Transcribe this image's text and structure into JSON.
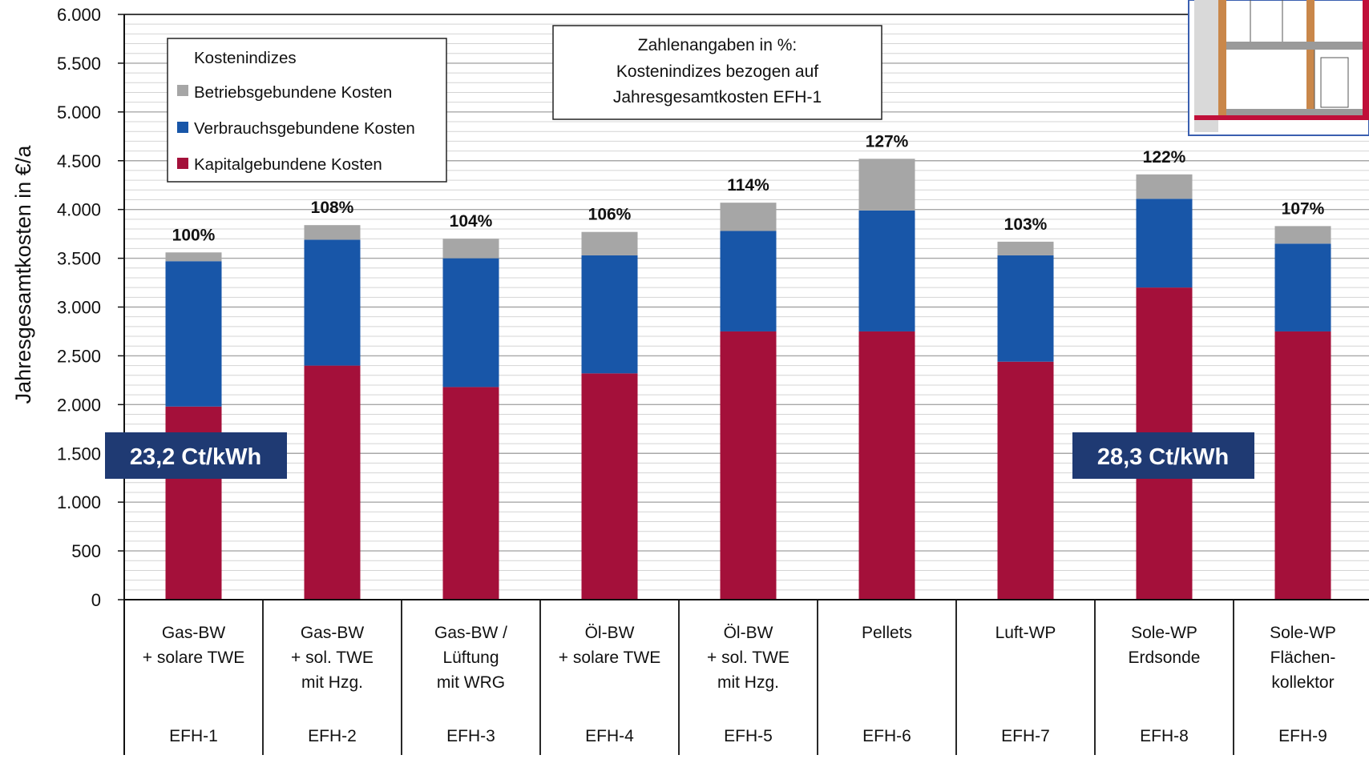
{
  "chart_data": {
    "type": "bar",
    "stacked": true,
    "ylabel": "Jahresgesamtkosten in €/a",
    "ylim": [
      0,
      6000
    ],
    "yticks": [
      0,
      500,
      1000,
      1500,
      2000,
      2500,
      3000,
      3500,
      4000,
      4500,
      5000,
      5500,
      6000
    ],
    "ytick_labels": [
      "0",
      "500",
      "1.000",
      "1.500",
      "2.000",
      "2.500",
      "3.000",
      "3.500",
      "4.000",
      "4.500",
      "5.000",
      "5.500",
      "6.000"
    ],
    "grid": true,
    "categories": [
      {
        "lines": [
          "Gas-BW",
          "+ solare TWE"
        ],
        "code": "EFH-1"
      },
      {
        "lines": [
          "Gas-BW",
          "+ sol. TWE",
          "mit Hzg."
        ],
        "code": "EFH-2"
      },
      {
        "lines": [
          "Gas-BW /",
          "Lüftung",
          "mit WRG"
        ],
        "code": "EFH-3"
      },
      {
        "lines": [
          "Öl-BW",
          "+ solare TWE"
        ],
        "code": "EFH-4"
      },
      {
        "lines": [
          "Öl-BW",
          "+ sol. TWE",
          "mit Hzg."
        ],
        "code": "EFH-5"
      },
      {
        "lines": [
          "Pellets"
        ],
        "code": "EFH-6"
      },
      {
        "lines": [
          "Luft-WP"
        ],
        "code": "EFH-7"
      },
      {
        "lines": [
          "Sole-WP",
          "Erdsonde"
        ],
        "code": "EFH-8"
      },
      {
        "lines": [
          "Sole-WP",
          "Flächen-",
          "kollektor"
        ],
        "code": "EFH-9"
      }
    ],
    "series": [
      {
        "name": "Kapitalgebundene Kosten",
        "color": "#a4103a",
        "values": [
          1980,
          2400,
          2180,
          2320,
          2750,
          2750,
          2440,
          3200,
          2750
        ]
      },
      {
        "name": "Verbrauchsgebundene Kosten",
        "color": "#1856a8",
        "values": [
          1490,
          1290,
          1320,
          1210,
          1030,
          1240,
          1090,
          910,
          900
        ]
      },
      {
        "name": "Betriebsgebundene Kosten",
        "color": "#a6a6a6",
        "values": [
          90,
          150,
          200,
          240,
          290,
          530,
          140,
          250,
          180
        ]
      }
    ],
    "percent_labels": [
      "100%",
      "108%",
      "104%",
      "106%",
      "114%",
      "127%",
      "103%",
      "122%",
      "107%"
    ],
    "legend": {
      "title": "Kostenindizes",
      "placement": "top-left",
      "entries": [
        "Betriebsgebundene Kosten",
        "Verbrauchsgebundene Kosten",
        "Kapitalgebundene Kosten"
      ]
    },
    "annotation": {
      "lines": [
        "Zahlenangaben in %:",
        "Kostenindizes bezogen auf",
        "Jahresgesamtkosten EFH-1"
      ]
    },
    "badges": [
      {
        "text": "23,2 Ct/kWh",
        "category_index": 0
      },
      {
        "text": "28,3 Ct/kWh",
        "category_index": 7
      }
    ],
    "colors": {
      "badge": "#1f3a73",
      "grid": "#bfbfbf"
    }
  }
}
